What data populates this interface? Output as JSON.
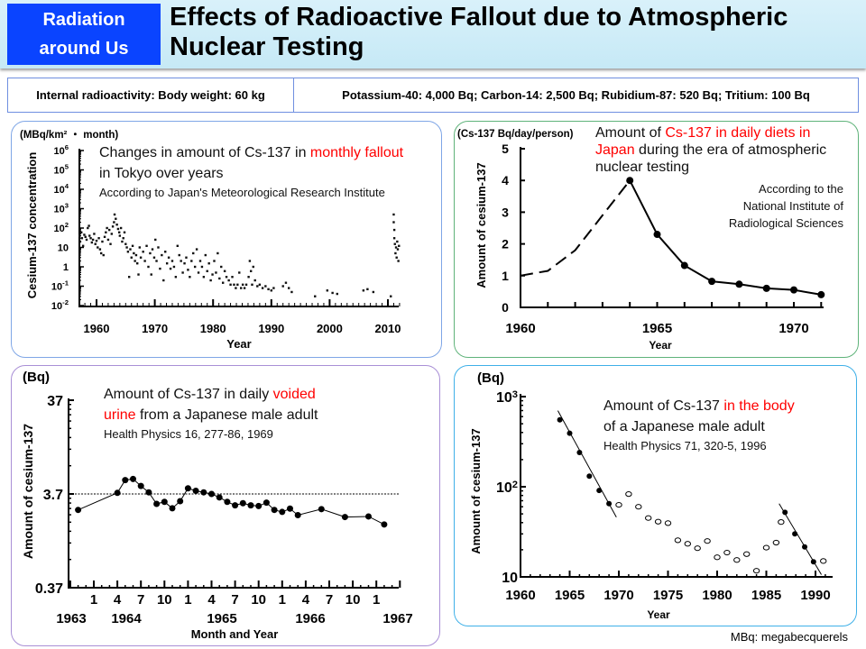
{
  "header": {
    "badge_line1": "Radiation",
    "badge_line2": "around Us",
    "title_line1": "Effects of Radioactive Fallout due to Atmospheric",
    "title_line2": "Nuclear Testing"
  },
  "info": {
    "left": "Internal radioactivity: Body weight: 60 kg",
    "right": "Potassium-40: 4,000 Bq; Carbon-14: 2,500 Bq; Rubidium-87: 520 Bq; Tritium: 100 Bq"
  },
  "colors": {
    "accent_badge": "#0a44ff",
    "highlight": "#ff0000",
    "panel1": "#7fa6e6",
    "panel2": "#5fb37a",
    "panel3": "#a98fd6",
    "panel4": "#3fb0e8"
  },
  "footnote": "MBq: megabecquerels",
  "chart_data": [
    {
      "type": "scatter",
      "unit": "(MBq/km² ・ month)",
      "title": [
        "Changes in amount of Cs-137 in ",
        "monthly fallout",
        "in Tokyo over years"
      ],
      "source": "According to Japan's Meteorological Research Institute",
      "xlabel": "Year",
      "ylabel": "Cesium-137 concentration",
      "yscale": "log",
      "ylim": [
        0.01,
        1000000
      ],
      "xlim": [
        1957,
        2012
      ],
      "xticks": [
        "1960",
        "1970",
        "1980",
        "1990",
        "2000",
        "2010"
      ],
      "yticks": [
        {
          "base": "10",
          "exp": "6",
          "v": 1000000
        },
        {
          "base": "10",
          "exp": "5",
          "v": 100000
        },
        {
          "base": "10",
          "exp": "4",
          "v": 10000
        },
        {
          "base": "10",
          "exp": "3",
          "v": 1000
        },
        {
          "base": "10",
          "exp": "2",
          "v": 100
        },
        {
          "base": "10",
          "exp": "",
          "v": 10
        },
        {
          "base": "1",
          "exp": "",
          "v": 1
        },
        {
          "base": "10",
          "exp": "-1",
          "v": 0.1
        },
        {
          "base": "10",
          "exp": "-2",
          "v": 0.01
        }
      ],
      "points": [
        [
          1957.1,
          40
        ],
        [
          1957.2,
          20
        ],
        [
          1957.4,
          60
        ],
        [
          1957.5,
          30
        ],
        [
          1957.7,
          12
        ],
        [
          1957.9,
          45
        ],
        [
          1958.1,
          35
        ],
        [
          1958.3,
          25
        ],
        [
          1958.5,
          100
        ],
        [
          1958.7,
          130
        ],
        [
          1958.8,
          40
        ],
        [
          1959.0,
          30
        ],
        [
          1959.2,
          18
        ],
        [
          1959.4,
          25
        ],
        [
          1959.6,
          50
        ],
        [
          1959.8,
          15
        ],
        [
          1960.0,
          22
        ],
        [
          1960.2,
          10
        ],
        [
          1960.4,
          30
        ],
        [
          1960.6,
          8
        ],
        [
          1960.8,
          5
        ],
        [
          1961.0,
          20
        ],
        [
          1961.2,
          4
        ],
        [
          1961.4,
          35
        ],
        [
          1961.6,
          60
        ],
        [
          1961.8,
          100
        ],
        [
          1962.0,
          25
        ],
        [
          1962.2,
          80
        ],
        [
          1962.4,
          15
        ],
        [
          1962.6,
          50
        ],
        [
          1962.8,
          120
        ],
        [
          1963.0,
          200
        ],
        [
          1963.1,
          500
        ],
        [
          1963.3,
          300
        ],
        [
          1963.5,
          150
        ],
        [
          1963.7,
          90
        ],
        [
          1963.9,
          60
        ],
        [
          1964.0,
          40
        ],
        [
          1964.2,
          100
        ],
        [
          1964.4,
          20
        ],
        [
          1964.6,
          30
        ],
        [
          1964.8,
          60
        ],
        [
          1965.0,
          15
        ],
        [
          1965.2,
          10
        ],
        [
          1965.4,
          6
        ],
        [
          1965.6,
          0.3
        ],
        [
          1965.8,
          8
        ],
        [
          1966.0,
          3
        ],
        [
          1966.2,
          12
        ],
        [
          1966.4,
          5
        ],
        [
          1966.6,
          2
        ],
        [
          1966.8,
          4
        ],
        [
          1967.0,
          1.5
        ],
        [
          1967.2,
          0.4
        ],
        [
          1967.4,
          10
        ],
        [
          1967.6,
          3
        ],
        [
          1968.0,
          6
        ],
        [
          1968.3,
          2
        ],
        [
          1968.6,
          12
        ],
        [
          1968.9,
          1
        ],
        [
          1969.2,
          5
        ],
        [
          1969.4,
          0.4
        ],
        [
          1969.6,
          8
        ],
        [
          1969.9,
          3
        ],
        [
          1970.1,
          25
        ],
        [
          1970.3,
          2
        ],
        [
          1970.6,
          10
        ],
        [
          1970.9,
          0.8
        ],
        [
          1971.2,
          4
        ],
        [
          1971.5,
          0.2
        ],
        [
          1971.8,
          6
        ],
        [
          1972.1,
          1.5
        ],
        [
          1972.4,
          3
        ],
        [
          1972.7,
          0.8
        ],
        [
          1973.0,
          2
        ],
        [
          1973.3,
          1
        ],
        [
          1973.6,
          0.3
        ],
        [
          1973.9,
          12
        ],
        [
          1974.2,
          4
        ],
        [
          1974.5,
          2
        ],
        [
          1974.8,
          0.5
        ],
        [
          1975.1,
          1.5
        ],
        [
          1975.4,
          3
        ],
        [
          1975.7,
          0.7
        ],
        [
          1976.0,
          0.3
        ],
        [
          1976.3,
          2
        ],
        [
          1976.6,
          5
        ],
        [
          1976.9,
          1
        ],
        [
          1977.2,
          8
        ],
        [
          1977.5,
          0.5
        ],
        [
          1977.8,
          2
        ],
        [
          1978.1,
          1
        ],
        [
          1978.4,
          0.3
        ],
        [
          1978.7,
          4
        ],
        [
          1979.0,
          0.6
        ],
        [
          1979.3,
          1.5
        ],
        [
          1979.6,
          0.2
        ],
        [
          1979.9,
          0.4
        ],
        [
          1980.2,
          2
        ],
        [
          1980.5,
          0.5
        ],
        [
          1980.8,
          5
        ],
        [
          1981.1,
          0.25
        ],
        [
          1981.4,
          1
        ],
        [
          1981.7,
          0.15
        ],
        [
          1982.0,
          0.6
        ],
        [
          1982.3,
          0.3
        ],
        [
          1982.7,
          0.2
        ],
        [
          1983.0,
          0.12
        ],
        [
          1983.3,
          0.3
        ],
        [
          1983.6,
          0.12
        ],
        [
          1983.9,
          0.08
        ],
        [
          1984.2,
          0.12
        ],
        [
          1984.5,
          0.5
        ],
        [
          1984.8,
          0.08
        ],
        [
          1985.1,
          0.12
        ],
        [
          1985.4,
          0.08
        ],
        [
          1985.7,
          0.12
        ],
        [
          1986.1,
          0.3
        ],
        [
          1986.3,
          2
        ],
        [
          1986.5,
          0.6
        ],
        [
          1986.7,
          0.12
        ],
        [
          1986.9,
          1
        ],
        [
          1987.2,
          0.2
        ],
        [
          1987.6,
          0.1
        ],
        [
          1988.0,
          0.12
        ],
        [
          1988.5,
          0.08
        ],
        [
          1989.0,
          0.1
        ],
        [
          1989.5,
          0.07
        ],
        [
          1990.0,
          0.06
        ],
        [
          1990.4,
          0.08
        ],
        [
          1992.0,
          0.1
        ],
        [
          1992.5,
          0.15
        ],
        [
          1993.0,
          0.08
        ],
        [
          1993.5,
          0.05
        ],
        [
          1997.5,
          0.03
        ],
        [
          1999.6,
          0.06
        ],
        [
          2000.5,
          0.045
        ],
        [
          2001.3,
          0.04
        ],
        [
          2005.8,
          0.06
        ],
        [
          2006.5,
          0.07
        ],
        [
          2007.5,
          0.05
        ],
        [
          2010.5,
          0.03
        ],
        [
          2011.0,
          500
        ],
        [
          2011.0,
          200
        ],
        [
          2011.1,
          80
        ],
        [
          2011.1,
          30
        ],
        [
          2011.2,
          15
        ],
        [
          2011.3,
          5
        ],
        [
          2011.4,
          10
        ],
        [
          2011.5,
          3
        ],
        [
          2011.6,
          20
        ],
        [
          2011.7,
          8
        ],
        [
          2011.8,
          2
        ],
        [
          2011.9,
          12
        ]
      ]
    },
    {
      "type": "line",
      "unit": "(Cs-137 Bq/day/person)",
      "title": [
        "Amount of ",
        "Cs-137 in daily diets in",
        "Japan",
        " during the era of atmospheric",
        "nuclear testing"
      ],
      "source": [
        "According to the",
        "National Institute of",
        "Radiological Sciences"
      ],
      "xlabel": "Year",
      "ylabel": "Amount of cesium-137",
      "xlim": [
        1960,
        1971.2
      ],
      "ylim": [
        0,
        5
      ],
      "xticks": [
        "1960",
        "1965",
        "1970"
      ],
      "yticks": [
        "0",
        "1",
        "2",
        "3",
        "4",
        "5"
      ],
      "estimated_dashed": {
        "x": [
          1960,
          1961,
          1962,
          1963,
          1964
        ],
        "y": [
          1.0,
          1.15,
          1.8,
          2.9,
          4.0
        ]
      },
      "measured": {
        "x": [
          1964,
          1965,
          1966,
          1967,
          1968,
          1969,
          1970,
          1971
        ],
        "y": [
          4.0,
          2.3,
          1.32,
          0.82,
          0.73,
          0.6,
          0.55,
          0.4
        ]
      }
    },
    {
      "type": "line",
      "unit": "(Bq)",
      "title": [
        "Amount of Cs-137 in daily ",
        "voided",
        "urine",
        " from a Japanese male adult"
      ],
      "source": "Health Physics 16, 277-86, 1969",
      "xlabel": "Month and Year",
      "ylabel": "Amount of cesium-137",
      "yscale": "log",
      "ylim": [
        0.37,
        37
      ],
      "yticks": [
        "37",
        "3.7",
        "0.37"
      ],
      "reference_line": 3.7,
      "month_ticks": [
        "1",
        "4",
        "7",
        "10",
        "1",
        "4",
        "7",
        "10",
        "1",
        "4",
        "7",
        "10",
        "1"
      ],
      "year_labels": [
        "1963",
        "1964",
        "1965",
        "1966",
        "1967"
      ],
      "points": [
        [
          "1963-11",
          2.5
        ],
        [
          "1964-04",
          3.8
        ],
        [
          "1964-05",
          5.2
        ],
        [
          "1964-06",
          5.35
        ],
        [
          "1964-07",
          4.5
        ],
        [
          "1964-08",
          3.85
        ],
        [
          "1964-09",
          2.9
        ],
        [
          "1964-10",
          3.05
        ],
        [
          "1964-11",
          2.6
        ],
        [
          "1964-12",
          3.1
        ],
        [
          "1965-01",
          4.25
        ],
        [
          "1965-02",
          4.0
        ],
        [
          "1965-03",
          3.85
        ],
        [
          "1965-04",
          3.7
        ],
        [
          "1965-05",
          3.4
        ],
        [
          "1965-06",
          3.05
        ],
        [
          "1965-07",
          2.8
        ],
        [
          "1965-08",
          2.95
        ],
        [
          "1965-09",
          2.8
        ],
        [
          "1965-10",
          2.75
        ],
        [
          "1965-11",
          2.99
        ],
        [
          "1965-12",
          2.5
        ],
        [
          "1966-01",
          2.38
        ],
        [
          "1966-02",
          2.58
        ],
        [
          "1966-03",
          2.2
        ],
        [
          "1966-06",
          2.55
        ],
        [
          "1966-09",
          2.1
        ],
        [
          "1966-12",
          2.13
        ],
        [
          "1967-02",
          1.75
        ]
      ]
    },
    {
      "type": "scatter",
      "unit": "(Bq)",
      "title": [
        "Amount of Cs-137 ",
        "in the body",
        "of a Japanese male adult"
      ],
      "source": "Health Physics 71, 320-5, 1996",
      "xlabel": "Year",
      "ylabel": "Amount of cesium-137",
      "yscale": "log",
      "ylim": [
        10,
        1000
      ],
      "xlim": [
        1960,
        1991.5
      ],
      "xticks": [
        "1960",
        "1965",
        "1970",
        "1975",
        "1980",
        "1985",
        "1990"
      ],
      "yticks": [
        {
          "base": "10",
          "exp": "3",
          "v": 1000
        },
        {
          "base": "10",
          "exp": "2",
          "v": 100
        },
        {
          "base": "10",
          "exp": "",
          "v": 10
        }
      ],
      "filled": [
        [
          1964,
          553
        ],
        [
          1965,
          392
        ],
        [
          1966,
          240
        ],
        [
          1967,
          131
        ],
        [
          1968,
          91
        ],
        [
          1969,
          65
        ],
        [
          1986.9,
          52
        ],
        [
          1987.9,
          30
        ],
        [
          1988.9,
          21.5
        ],
        [
          1989.8,
          14.7
        ]
      ],
      "open": [
        [
          1970,
          63
        ],
        [
          1971,
          83
        ],
        [
          1972,
          60
        ],
        [
          1973,
          45
        ],
        [
          1974,
          41
        ],
        [
          1975,
          39.5
        ],
        [
          1976,
          25.5
        ],
        [
          1977,
          23.3
        ],
        [
          1978,
          20.8
        ],
        [
          1979,
          25
        ],
        [
          1980,
          16.5
        ],
        [
          1981,
          18.6
        ],
        [
          1982,
          15.4
        ],
        [
          1983,
          17.9
        ],
        [
          1984,
          11.7
        ],
        [
          1985,
          21.1
        ],
        [
          1986,
          24
        ],
        [
          1986.5,
          40.6
        ],
        [
          1990.8,
          15
        ]
      ],
      "fit_lines": [
        [
          [
            1963.8,
            697
          ],
          [
            1969.75,
            46
          ]
        ],
        [
          [
            1986.3,
            65
          ],
          [
            1990.6,
            10.6
          ]
        ]
      ]
    }
  ]
}
